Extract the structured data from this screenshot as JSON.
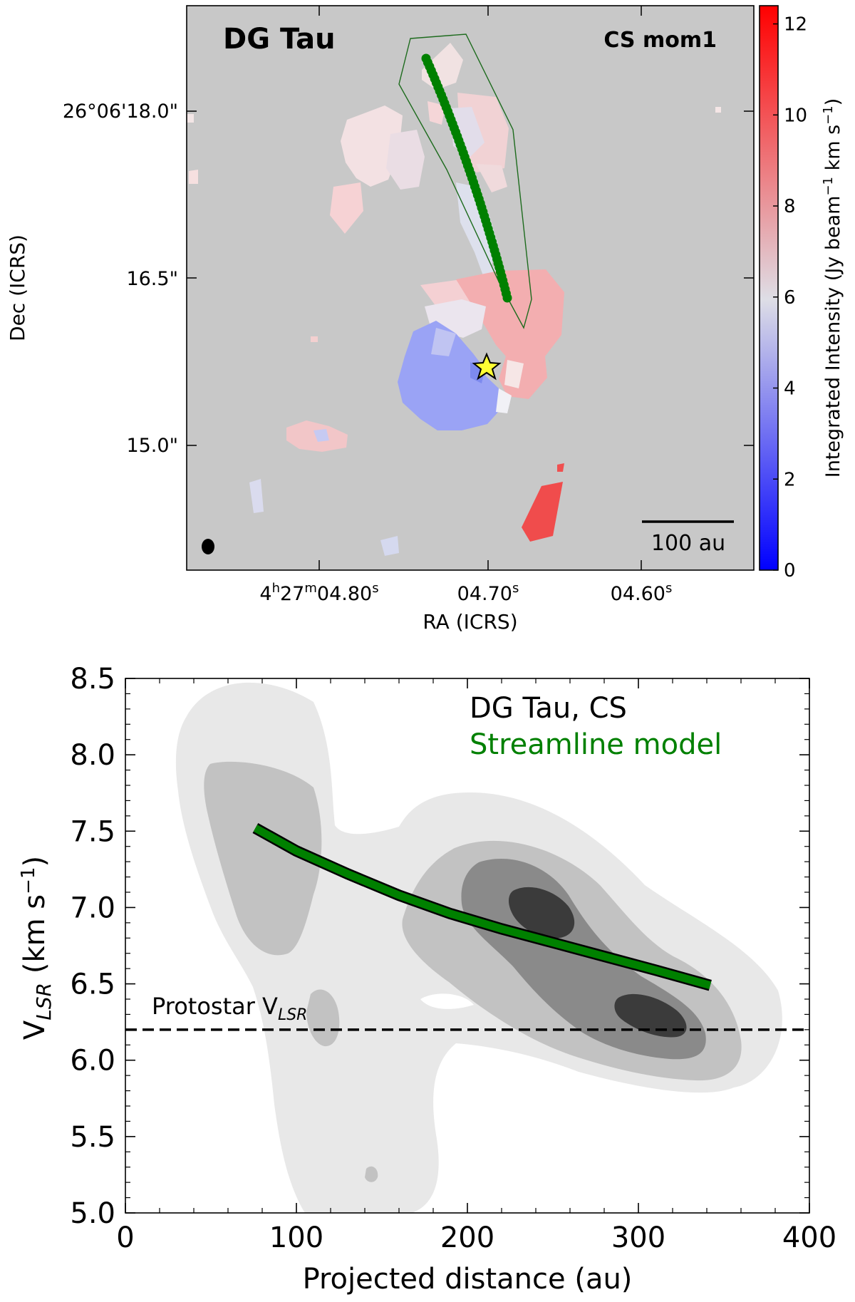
{
  "chart_data": [
    {
      "type": "heatmap",
      "title": "DG Tau",
      "subtitle": "CS mom1",
      "xlabel": "RA (ICRS)",
      "ylabel": "Dec (ICRS)",
      "x_tick_labels": [
        {
          "main": "4",
          "sup_h": "h",
          "mid": "27",
          "sup_m": "m",
          "sec": "04.80",
          "sup_s": "s"
        },
        {
          "main": "",
          "sup_h": "",
          "mid": "",
          "sup_m": "",
          "sec": "04.70",
          "sup_s": "s"
        },
        {
          "main": "",
          "sup_h": "",
          "mid": "",
          "sup_m": "",
          "sec": "04.60",
          "sup_s": "s"
        }
      ],
      "y_tick_labels": [
        "26°06'18.0\"",
        "16.5\"",
        "15.0\""
      ],
      "colorbar": {
        "label_pre": "Integrated Intensity (Jy beam",
        "label_sup1": "−1",
        "label_mid": " km s",
        "label_sup2": "−1",
        "label_post": ")",
        "range": [
          0,
          12.4
        ],
        "ticks": [
          "0",
          "2",
          "4",
          "6",
          "8",
          "10",
          "12"
        ],
        "tick_values": [
          0,
          2,
          4,
          6,
          8,
          10,
          12
        ],
        "colors": [
          "#0000ff",
          "#dddddd",
          "#ff0000"
        ]
      },
      "scale_bar_label": "100 au",
      "colors": {
        "background": "#c8c8c8",
        "streamline": "#008000",
        "star": "#ffff33"
      }
    },
    {
      "type": "line",
      "xlabel": "Projected distance (au)",
      "ylabel_main": "V",
      "ylabel_sub": "LSR",
      "ylabel_rest": " (km s",
      "ylabel_sup": "−1",
      "ylabel_close": ")",
      "xlim": [
        0,
        400
      ],
      "ylim": [
        5.0,
        8.5
      ],
      "x_ticks": [
        0,
        100,
        200,
        300,
        400
      ],
      "x_tick_labels": [
        "0",
        "100",
        "200",
        "300",
        "400"
      ],
      "y_ticks": [
        5.0,
        5.5,
        6.0,
        6.5,
        7.0,
        7.5,
        8.0,
        8.5
      ],
      "y_tick_labels": [
        "5.0",
        "5.5",
        "6.0",
        "6.5",
        "7.0",
        "7.5",
        "8.0",
        "8.5"
      ],
      "legend": [
        "DG Tau, CS",
        "Streamline model"
      ],
      "protostar_label_main": "Protostar V",
      "protostar_label_sub": "LSR",
      "protostar_vlsr": 6.2,
      "series": [
        {
          "name": "Streamline model",
          "x": [
            76,
            100,
            130,
            160,
            190,
            220,
            250,
            280,
            310,
            342
          ],
          "values": [
            7.52,
            7.37,
            7.22,
            7.08,
            6.96,
            6.86,
            6.77,
            6.68,
            6.59,
            6.49
          ],
          "color": "#008000"
        }
      ],
      "colors": {
        "contour_levels": [
          "#e8e8e8",
          "#c2c2c2",
          "#8a8a8a",
          "#3b3b3b"
        ]
      }
    }
  ]
}
